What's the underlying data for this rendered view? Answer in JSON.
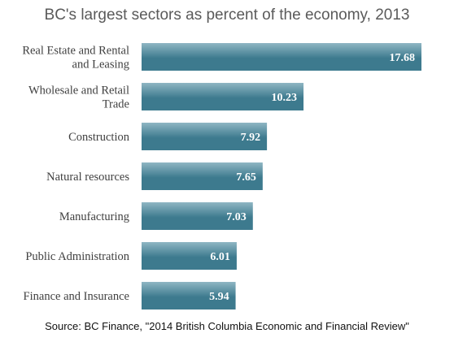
{
  "chart_data": {
    "type": "bar",
    "orientation": "horizontal",
    "title": "BC's largest sectors as percent of the economy, 2013",
    "categories": [
      [
        "Real Estate and Rental",
        "and Leasing"
      ],
      [
        "Wholesale and Retail",
        "Trade"
      ],
      [
        "Construction"
      ],
      [
        "Natural resources"
      ],
      [
        "Manufacturing"
      ],
      [
        "Public Administration"
      ],
      [
        "Finance and Insurance"
      ]
    ],
    "values": [
      17.68,
      10.23,
      7.92,
      7.65,
      7.03,
      6.01,
      5.94
    ],
    "value_labels": [
      "17.68",
      "10.23",
      "7.92",
      "7.65",
      "7.03",
      "6.01",
      "5.94"
    ],
    "xlim": [
      0,
      18.4
    ],
    "grid": false,
    "bar_color": "#3d7a8e",
    "bar_color_light": "#8fb6c3",
    "source": "Source: BC Finance, \"2014 British Columbia Economic and Financial Review\""
  }
}
